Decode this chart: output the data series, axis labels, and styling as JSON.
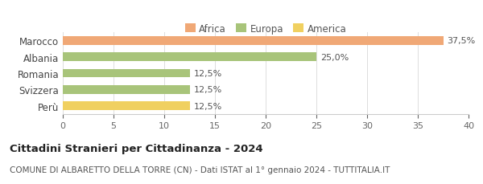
{
  "categories": [
    "Marocco",
    "Albania",
    "Romania",
    "Svizzera",
    "Perù"
  ],
  "values": [
    37.5,
    25.0,
    12.5,
    12.5,
    12.5
  ],
  "bar_colors": [
    "#f0a876",
    "#a8c47a",
    "#a8c47a",
    "#a8c47a",
    "#f0d060"
  ],
  "value_labels": [
    "37,5%",
    "25,0%",
    "12,5%",
    "12,5%",
    "12,5%"
  ],
  "legend": [
    {
      "label": "Africa",
      "color": "#f0a876"
    },
    {
      "label": "Europa",
      "color": "#a8c47a"
    },
    {
      "label": "America",
      "color": "#f0d060"
    }
  ],
  "xlim": [
    0,
    40
  ],
  "xticks": [
    0,
    5,
    10,
    15,
    20,
    25,
    30,
    35,
    40
  ],
  "title": "Cittadini Stranieri per Cittadinanza - 2024",
  "subtitle": "COMUNE DI ALBARETTO DELLA TORRE (CN) - Dati ISTAT al 1° gennaio 2024 - TUTTITALIA.IT",
  "title_fontsize": 9.5,
  "subtitle_fontsize": 7.5,
  "background_color": "#ffffff",
  "bar_height": 0.52,
  "label_fontsize": 8.0,
  "tick_fontsize": 8.0,
  "ytick_fontsize": 8.5
}
